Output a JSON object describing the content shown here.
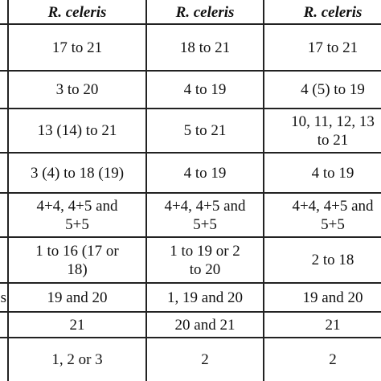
{
  "table": {
    "header": [
      [],
      [
        "R. celeris"
      ],
      [
        "R. celeris"
      ],
      [
        "R. celeris"
      ]
    ],
    "rows": [
      [
        [],
        [
          "17 to 21"
        ],
        [
          "18 to 21"
        ],
        [
          "17 to 21"
        ]
      ],
      [
        [],
        [
          "3 to 20"
        ],
        [
          "4 to 19"
        ],
        [
          "4 (5) to 19"
        ]
      ],
      [
        [],
        [
          "13 (14) to 21"
        ],
        [
          "5 to 21"
        ],
        [
          "10, 11, 12, 13",
          "to 21"
        ]
      ],
      [
        [],
        [
          "3 (4) to 18 (19)"
        ],
        [
          "4 to 19"
        ],
        [
          "4 to 19"
        ]
      ],
      [
        [],
        [
          "4+4, 4+5 and",
          "5+5"
        ],
        [
          "4+4, 4+5 and",
          "5+5"
        ],
        [
          "4+4, 4+5 and",
          "5+5"
        ]
      ],
      [
        [],
        [
          "1 to 16 (17 or",
          "18)"
        ],
        [
          "1 to 19 or 2",
          "to 20"
        ],
        [
          "2 to 18"
        ]
      ],
      [
        [
          "s"
        ],
        [
          "19 and 20"
        ],
        [
          "1, 19 and 20"
        ],
        [
          "19 and 20"
        ]
      ],
      [
        [],
        [
          "21"
        ],
        [
          "20 and 21"
        ],
        [
          "21"
        ]
      ],
      [
        [],
        [
          "1, 2 or 3"
        ],
        [
          "2"
        ],
        [
          "2"
        ]
      ]
    ]
  }
}
